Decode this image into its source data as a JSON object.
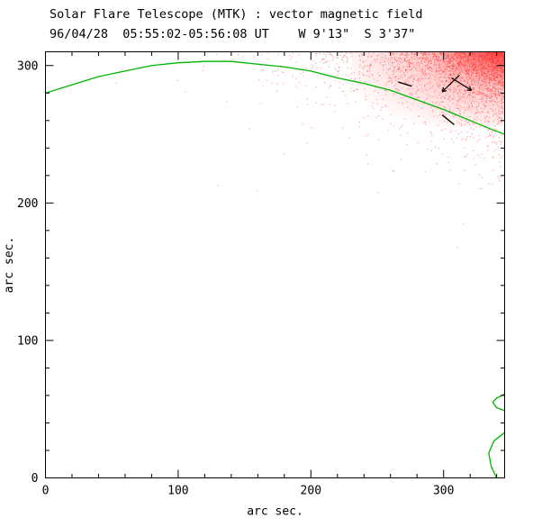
{
  "header": {
    "title": "Solar Flare Telescope (MTK) : vector magnetic field",
    "subtitle": "96/04/28  05:55:02-05:56:08 UT    W 9'13\"  S 3'37\""
  },
  "chart_data": {
    "type": "scatter",
    "title": "Solar Flare Telescope (MTK) : vector magnetic field",
    "subtitle": "96/04/28  05:55:02-05:56:08 UT    W 9'13\"  S 3'37\"",
    "xlabel": "arc sec.",
    "ylabel": "arc sec.",
    "xlim": [
      0,
      346
    ],
    "ylim": [
      0,
      310
    ],
    "xticks": [
      0,
      100,
      200,
      300
    ],
    "yticks": [
      0,
      100,
      200,
      300
    ],
    "minor_tick_step": 20,
    "grid": false,
    "legend": "none",
    "colors": {
      "frame": "#000000",
      "contour": "#00b400",
      "noise": "#ff3333",
      "annotation": "#000000"
    },
    "series": [
      {
        "name": "solar-limb-contour",
        "points": [
          [
            0,
            280
          ],
          [
            20,
            286
          ],
          [
            40,
            292
          ],
          [
            60,
            296
          ],
          [
            80,
            300
          ],
          [
            100,
            302
          ],
          [
            120,
            303
          ],
          [
            140,
            303
          ],
          [
            160,
            301
          ],
          [
            180,
            299
          ],
          [
            200,
            296
          ],
          [
            220,
            291
          ],
          [
            240,
            287
          ],
          [
            260,
            282
          ],
          [
            280,
            275
          ],
          [
            300,
            268
          ],
          [
            320,
            260
          ],
          [
            335,
            254
          ],
          [
            346,
            250
          ]
        ]
      },
      {
        "name": "edge-contour-upper",
        "points": [
          [
            346,
            61
          ],
          [
            340,
            58
          ],
          [
            337,
            55
          ],
          [
            340,
            51
          ],
          [
            346,
            49
          ]
        ]
      },
      {
        "name": "edge-contour-lower",
        "points": [
          [
            346,
            33
          ],
          [
            338,
            27
          ],
          [
            334,
            18
          ],
          [
            336,
            8
          ],
          [
            340,
            0
          ]
        ]
      }
    ],
    "annotations": {
      "dashes": [
        [
          [
            266,
            288
          ],
          [
            276,
            285
          ]
        ],
        [
          [
            299,
            264
          ],
          [
            308,
            257
          ]
        ]
      ],
      "vectors": [
        {
          "from": [
            312,
            293
          ],
          "to": [
            299,
            281
          ]
        },
        {
          "from": [
            306,
            291
          ],
          "to": [
            321,
            282
          ]
        }
      ]
    },
    "noise_field": {
      "corner": [
        346,
        310
      ],
      "count": 3200,
      "spread_x": 36,
      "spread_y": 17,
      "seed": 42,
      "dot_size": 1.1,
      "opacity": 0.5
    }
  }
}
